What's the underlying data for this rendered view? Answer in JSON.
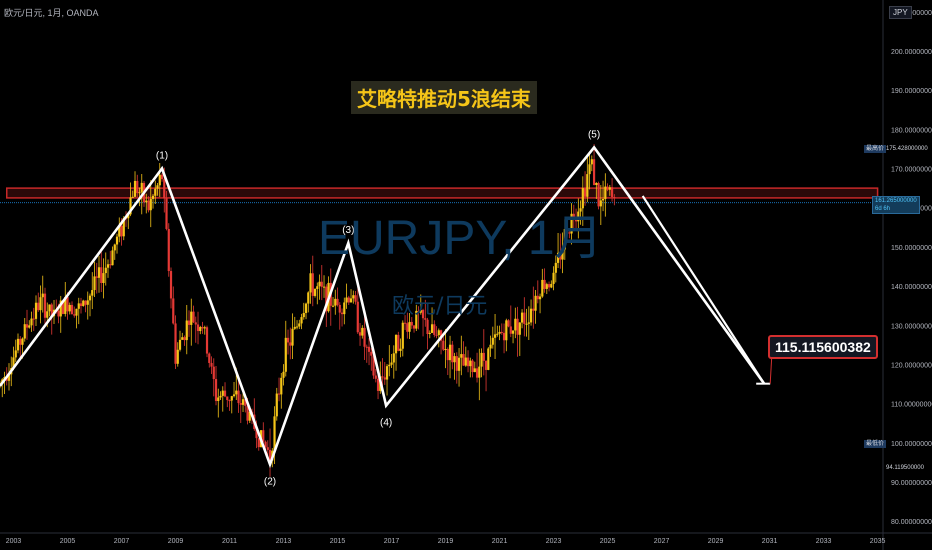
{
  "symbol_info": "欧元/日元, 1月, OANDA",
  "title": "艾略特推动5浪结束",
  "watermark": {
    "main": "EURJPY, 1月",
    "sub": "欧元/日元"
  },
  "axis_currency": "JPY",
  "target_label": "115.115600382",
  "price_tags": {
    "high_label": "最高价",
    "high_value": "175.428000000",
    "low_label": "最低价",
    "low_value": "94.119500000",
    "last_value": "161.265000000",
    "last_countdown": "6d 6h"
  },
  "colors": {
    "background": "#000000",
    "up_candle": "#f5c518",
    "down_candle": "#e53935",
    "wave_line": "#ffffff",
    "resistance_zone": "#c62828",
    "title_text": "#f5c518"
  },
  "chart_data": {
    "type": "line",
    "title": "艾略特推动5浪结束",
    "xlabel": "",
    "ylabel": "",
    "x_ticks": [
      "2003",
      "2005",
      "2007",
      "2009",
      "2011",
      "2013",
      "2015",
      "2017",
      "2019",
      "2021",
      "2023",
      "2025",
      "2027",
      "2029",
      "2031",
      "2033",
      "2035"
    ],
    "y_ticks": [
      "210.000000000",
      "200.000000000",
      "190.000000000",
      "180.000000000",
      "170.000000000",
      "160.000000000",
      "150.000000000",
      "140.000000000",
      "130.000000000",
      "120.000000000",
      "110.000000000",
      "100.000000000",
      "90.000000000",
      "80.000000000"
    ],
    "ylim": [
      77,
      213
    ],
    "xlim": [
      2002.5,
      2035.2
    ],
    "series": [
      {
        "values_note": "",
        "points": [
          {
            "x": 2002.5,
            "y": 114.5,
            "label": ""
          },
          {
            "x": 2008.5,
            "y": 170.0,
            "label": "(1)"
          },
          {
            "x": 2012.5,
            "y": 94.5,
            "label": "(2)"
          },
          {
            "x": 2015.4,
            "y": 151.0,
            "label": "(3)"
          },
          {
            "x": 2016.8,
            "y": 109.5,
            "label": "(4)"
          },
          {
            "x": 2024.5,
            "y": 175.4,
            "label": "(5)"
          },
          {
            "x": 2030.8,
            "y": 115.1,
            "label": ""
          }
        ]
      }
    ],
    "projection_line": [
      {
        "x": 2026.3,
        "y": 163.0
      },
      {
        "x": 2030.8,
        "y": 115.1
      }
    ],
    "resistance_zone": [
      162.5,
      165.0
    ],
    "current_price_line": 161.265,
    "target": 115.115600382,
    "monthly_ohlc_approx": [
      {
        "x": 2002.5,
        "y": 115
      },
      {
        "x": 2003.0,
        "y": 122
      },
      {
        "x": 2003.5,
        "y": 130
      },
      {
        "x": 2004.0,
        "y": 136
      },
      {
        "x": 2004.5,
        "y": 132
      },
      {
        "x": 2005.0,
        "y": 136
      },
      {
        "x": 2005.5,
        "y": 134
      },
      {
        "x": 2006.0,
        "y": 140
      },
      {
        "x": 2006.5,
        "y": 146
      },
      {
        "x": 2007.0,
        "y": 155
      },
      {
        "x": 2007.5,
        "y": 166
      },
      {
        "x": 2008.0,
        "y": 160
      },
      {
        "x": 2008.5,
        "y": 168
      },
      {
        "x": 2009.0,
        "y": 122
      },
      {
        "x": 2009.5,
        "y": 132
      },
      {
        "x": 2010.0,
        "y": 130
      },
      {
        "x": 2010.5,
        "y": 112
      },
      {
        "x": 2011.0,
        "y": 112
      },
      {
        "x": 2011.5,
        "y": 110
      },
      {
        "x": 2012.0,
        "y": 103
      },
      {
        "x": 2012.5,
        "y": 97
      },
      {
        "x": 2013.0,
        "y": 122
      },
      {
        "x": 2013.5,
        "y": 130
      },
      {
        "x": 2014.0,
        "y": 140
      },
      {
        "x": 2014.5,
        "y": 138
      },
      {
        "x": 2015.0,
        "y": 135
      },
      {
        "x": 2015.5,
        "y": 138
      },
      {
        "x": 2016.0,
        "y": 125
      },
      {
        "x": 2016.5,
        "y": 114
      },
      {
        "x": 2017.0,
        "y": 122
      },
      {
        "x": 2017.5,
        "y": 130
      },
      {
        "x": 2018.0,
        "y": 132
      },
      {
        "x": 2018.5,
        "y": 128
      },
      {
        "x": 2019.0,
        "y": 124
      },
      {
        "x": 2019.5,
        "y": 120
      },
      {
        "x": 2020.0,
        "y": 119
      },
      {
        "x": 2020.5,
        "y": 122
      },
      {
        "x": 2021.0,
        "y": 128
      },
      {
        "x": 2021.5,
        "y": 130
      },
      {
        "x": 2022.0,
        "y": 132
      },
      {
        "x": 2022.5,
        "y": 140
      },
      {
        "x": 2023.0,
        "y": 142
      },
      {
        "x": 2023.5,
        "y": 155
      },
      {
        "x": 2024.0,
        "y": 162
      },
      {
        "x": 2024.4,
        "y": 172
      },
      {
        "x": 2024.7,
        "y": 160
      },
      {
        "x": 2025.0,
        "y": 164
      },
      {
        "x": 2025.3,
        "y": 161
      }
    ]
  }
}
